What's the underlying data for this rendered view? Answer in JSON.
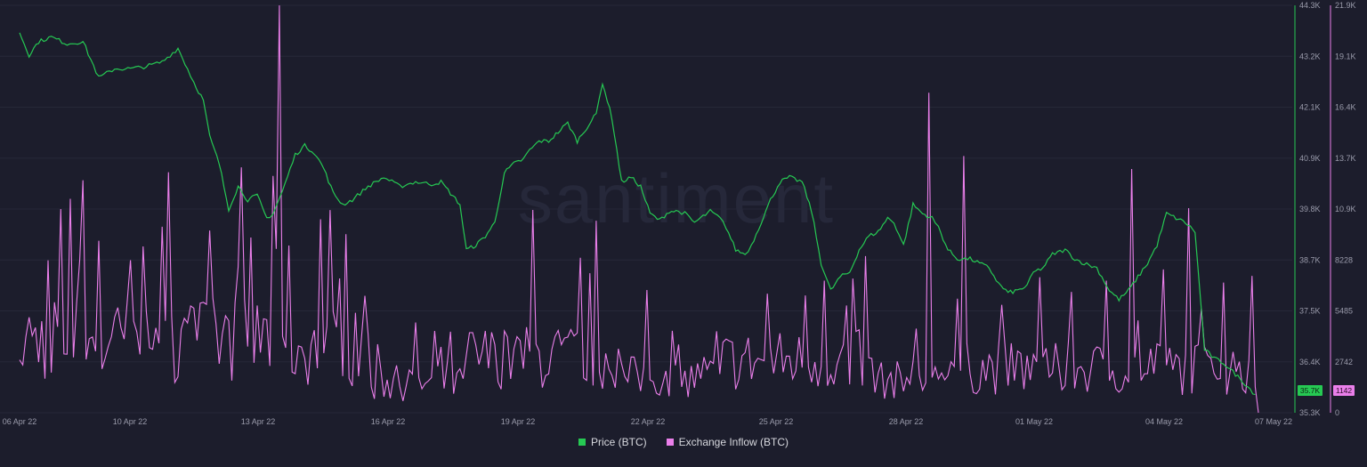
{
  "chart_data": {
    "type": "line",
    "watermark": "santiment",
    "x_ticks": [
      "06 Apr 22",
      "10 Apr 22",
      "13 Apr 22",
      "16 Apr 22",
      "19 Apr 22",
      "22 Apr 22",
      "25 Apr 22",
      "28 Apr 22",
      "01 May 22",
      "04 May 22",
      "07 May 22"
    ],
    "price_axis": {
      "ticks": [
        "44.3K",
        "43.2K",
        "42.1K",
        "40.9K",
        "39.8K",
        "38.7K",
        "37.5K",
        "36.4K",
        "35.3K"
      ],
      "ylim": [
        35300,
        44300
      ],
      "current_label": "35.7K"
    },
    "inflow_axis": {
      "ticks": [
        "21.9K",
        "19.1K",
        "16.4K",
        "13.7K",
        "10.9K",
        "8228",
        "5485",
        "2742",
        "0"
      ],
      "ylim": [
        0,
        21900
      ],
      "current_label": "1142"
    },
    "series": [
      {
        "name": "Price (BTC)",
        "color": "#26c953",
        "axis": "price",
        "values": [
          [
            0.0,
            43700
          ],
          [
            0.3,
            43200
          ],
          [
            0.6,
            43500
          ],
          [
            1.0,
            43600
          ],
          [
            1.5,
            43450
          ],
          [
            2.0,
            43500
          ],
          [
            2.5,
            42700
          ],
          [
            3.0,
            42900
          ],
          [
            3.5,
            42900
          ],
          [
            4.0,
            42950
          ],
          [
            4.5,
            43050
          ],
          [
            5.0,
            43350
          ],
          [
            5.3,
            42900
          ],
          [
            5.5,
            42600
          ],
          [
            5.8,
            42200
          ],
          [
            6.0,
            41400
          ],
          [
            6.3,
            40800
          ],
          [
            6.6,
            39800
          ],
          [
            6.9,
            40300
          ],
          [
            7.2,
            40000
          ],
          [
            7.5,
            40100
          ],
          [
            7.8,
            39600
          ],
          [
            8.0,
            39700
          ],
          [
            8.3,
            40200
          ],
          [
            8.7,
            41000
          ],
          [
            9.0,
            41200
          ],
          [
            9.3,
            41050
          ],
          [
            9.6,
            40700
          ],
          [
            9.9,
            40150
          ],
          [
            10.2,
            39900
          ],
          [
            10.5,
            40000
          ],
          [
            11.0,
            40300
          ],
          [
            11.5,
            40500
          ],
          [
            12.0,
            40300
          ],
          [
            12.5,
            40400
          ],
          [
            13.0,
            40350
          ],
          [
            13.3,
            40400
          ],
          [
            13.6,
            40150
          ],
          [
            13.9,
            39900
          ],
          [
            14.1,
            38900
          ],
          [
            14.4,
            39000
          ],
          [
            14.7,
            39200
          ],
          [
            15.0,
            39500
          ],
          [
            15.3,
            40600
          ],
          [
            15.6,
            40800
          ],
          [
            15.9,
            40900
          ],
          [
            16.1,
            41100
          ],
          [
            16.4,
            41300
          ],
          [
            16.7,
            41300
          ],
          [
            17.0,
            41500
          ],
          [
            17.3,
            41700
          ],
          [
            17.6,
            41300
          ],
          [
            17.9,
            41600
          ],
          [
            18.2,
            41900
          ],
          [
            18.4,
            42600
          ],
          [
            18.7,
            41800
          ],
          [
            19.0,
            40400
          ],
          [
            19.3,
            40500
          ],
          [
            19.6,
            40300
          ],
          [
            19.9,
            39700
          ],
          [
            20.2,
            39550
          ],
          [
            20.5,
            39750
          ],
          [
            20.8,
            39750
          ],
          [
            21.0,
            39700
          ],
          [
            21.3,
            39500
          ],
          [
            21.5,
            39600
          ],
          [
            21.8,
            39750
          ],
          [
            22.1,
            39600
          ],
          [
            22.3,
            39400
          ],
          [
            22.6,
            38900
          ],
          [
            22.9,
            38800
          ],
          [
            23.1,
            39000
          ],
          [
            23.4,
            39500
          ],
          [
            23.7,
            40000
          ],
          [
            24.0,
            40400
          ],
          [
            24.3,
            40500
          ],
          [
            24.7,
            40400
          ],
          [
            25.0,
            39750
          ],
          [
            25.3,
            38600
          ],
          [
            25.6,
            38000
          ],
          [
            25.9,
            38300
          ],
          [
            26.2,
            38400
          ],
          [
            26.5,
            38900
          ],
          [
            26.8,
            39200
          ],
          [
            27.1,
            39300
          ],
          [
            27.4,
            39600
          ],
          [
            27.6,
            39500
          ],
          [
            27.9,
            39000
          ],
          [
            28.2,
            39900
          ],
          [
            28.5,
            39700
          ],
          [
            28.8,
            39600
          ],
          [
            29.0,
            39400
          ],
          [
            29.3,
            38900
          ],
          [
            29.6,
            38700
          ],
          [
            30.0,
            38700
          ],
          [
            30.3,
            38600
          ],
          [
            30.6,
            38500
          ],
          [
            30.9,
            38150
          ],
          [
            31.2,
            37950
          ],
          [
            31.5,
            38000
          ],
          [
            31.8,
            38100
          ],
          [
            32.0,
            38400
          ],
          [
            32.3,
            38500
          ],
          [
            32.6,
            38800
          ],
          [
            33.0,
            38900
          ],
          [
            33.3,
            38700
          ],
          [
            33.6,
            38600
          ],
          [
            34.0,
            38500
          ],
          [
            34.4,
            38000
          ],
          [
            34.7,
            37800
          ],
          [
            35.0,
            38000
          ],
          [
            35.3,
            38300
          ],
          [
            35.6,
            38600
          ],
          [
            35.9,
            39000
          ],
          [
            36.2,
            39700
          ],
          [
            36.5,
            39600
          ],
          [
            36.8,
            39500
          ],
          [
            37.1,
            39300
          ],
          [
            37.4,
            36700
          ],
          [
            37.7,
            36500
          ],
          [
            38.0,
            36400
          ],
          [
            38.3,
            36200
          ],
          [
            38.6,
            36000
          ],
          [
            39.0,
            35700
          ]
        ]
      },
      {
        "name": "Exchange Inflow (BTC)",
        "color": "#ea7fea",
        "axis": "inflow",
        "peak_values": [
          [
            8.2,
            21900
          ],
          [
            16.2,
            10900
          ],
          [
            28.7,
            17200
          ],
          [
            29.8,
            13800
          ],
          [
            35.1,
            13100
          ],
          [
            36.9,
            11000
          ],
          [
            6.0,
            9800
          ],
          [
            4.5,
            10000
          ],
          [
            2.0,
            12500
          ],
          [
            1.6,
            11500
          ],
          [
            9.5,
            10400
          ],
          [
            19.8,
            6600
          ],
          [
            23.6,
            6400
          ],
          [
            24.8,
            6300
          ],
          [
            25.4,
            7100
          ],
          [
            31.0,
            5800
          ],
          [
            33.2,
            6500
          ],
          [
            34.3,
            7100
          ],
          [
            38.0,
            7000
          ],
          [
            3.5,
            8200
          ],
          [
            10.3,
            9600
          ]
        ]
      }
    ]
  }
}
